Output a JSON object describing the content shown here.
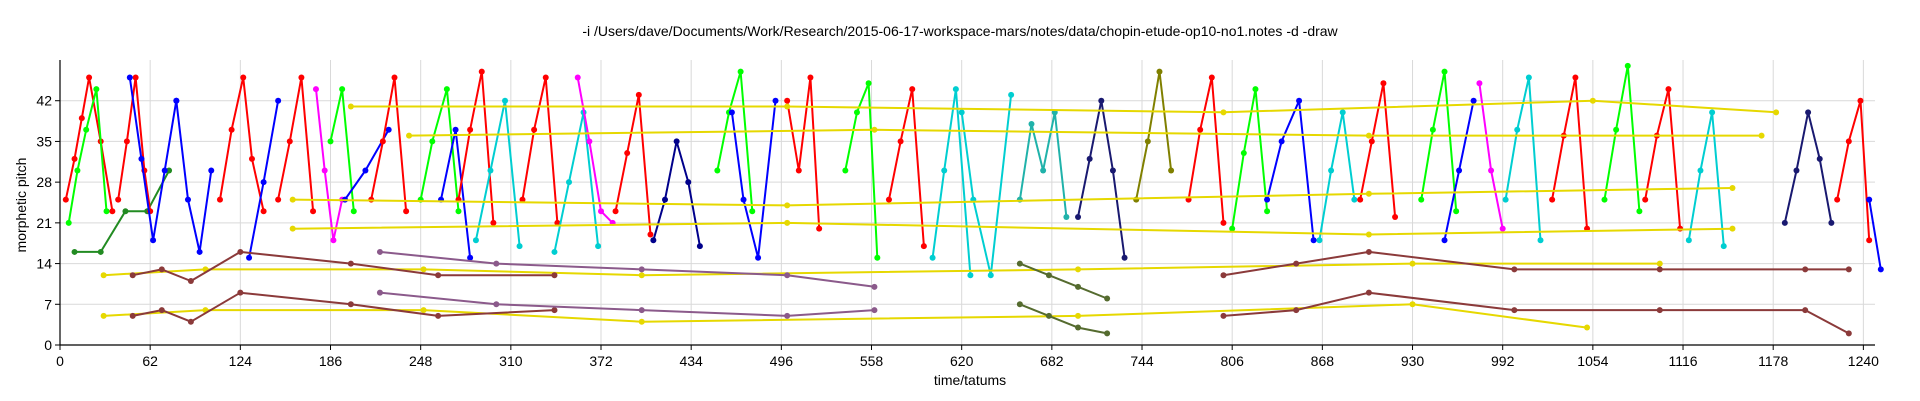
{
  "chart_data": {
    "type": "line",
    "title": "-i /Users/dave/Documents/Work/Research/2015-06-17-workspace-mars/notes/data/chopin-etude-op10-no1.notes -d -draw",
    "xlabel": "time/tatums",
    "ylabel": "morphetic pitch",
    "xlim": [
      0,
      1248
    ],
    "ylim": [
      0,
      49
    ],
    "x_ticks": [
      0,
      62,
      124,
      186,
      248,
      310,
      372,
      434,
      496,
      558,
      620,
      682,
      744,
      806,
      868,
      930,
      992,
      1054,
      1116,
      1178,
      1240
    ],
    "y_ticks": [
      0,
      7,
      14,
      21,
      28,
      35,
      42
    ],
    "grid": true,
    "legend": "none",
    "series": [
      {
        "color": "#ff0000",
        "x": [
          4,
          10,
          15,
          20,
          28,
          36
        ],
        "y": [
          25,
          32,
          39,
          46,
          35,
          23
        ]
      },
      {
        "color": "#00ff00",
        "x": [
          6,
          12,
          18,
          25,
          32
        ],
        "y": [
          21,
          30,
          37,
          44,
          23
        ]
      },
      {
        "color": "#228b22",
        "x": [
          10,
          28,
          45,
          60,
          75
        ],
        "y": [
          16,
          16,
          23,
          23,
          30
        ]
      },
      {
        "color": "#ff0000",
        "x": [
          40,
          46,
          52,
          58,
          62
        ],
        "y": [
          25,
          35,
          46,
          30,
          23
        ]
      },
      {
        "color": "#0000ff",
        "x": [
          48,
          56,
          64,
          72,
          80
        ],
        "y": [
          46,
          32,
          18,
          30,
          42
        ]
      },
      {
        "color": "#0000ff",
        "x": [
          80,
          88,
          96,
          104
        ],
        "y": [
          42,
          25,
          16,
          30
        ]
      },
      {
        "color": "#ff0000",
        "x": [
          110,
          118,
          126,
          132,
          140
        ],
        "y": [
          25,
          37,
          46,
          32,
          23
        ]
      },
      {
        "color": "#0000ff",
        "x": [
          130,
          140,
          150
        ],
        "y": [
          15,
          28,
          42
        ]
      },
      {
        "color": "#ff0000",
        "x": [
          150,
          158,
          166,
          174
        ],
        "y": [
          25,
          35,
          46,
          23
        ]
      },
      {
        "color": "#ff00ff",
        "x": [
          176,
          182,
          188,
          194
        ],
        "y": [
          44,
          30,
          18,
          25
        ]
      },
      {
        "color": "#00ff00",
        "x": [
          186,
          194,
          202
        ],
        "y": [
          35,
          44,
          23
        ]
      },
      {
        "color": "#0000ff",
        "x": [
          196,
          210,
          226
        ],
        "y": [
          25,
          30,
          37
        ]
      },
      {
        "color": "#ff0000",
        "x": [
          214,
          222,
          230,
          238
        ],
        "y": [
          25,
          35,
          46,
          23
        ]
      },
      {
        "color": "#00ff00",
        "x": [
          248,
          256,
          266,
          274
        ],
        "y": [
          25,
          35,
          44,
          23
        ]
      },
      {
        "color": "#0000ff",
        "x": [
          262,
          272,
          282
        ],
        "y": [
          25,
          37,
          15
        ]
      },
      {
        "color": "#ff0000",
        "x": [
          274,
          282,
          290,
          298
        ],
        "y": [
          25,
          37,
          47,
          21
        ]
      },
      {
        "color": "#00ced1",
        "x": [
          286,
          296,
          306,
          316
        ],
        "y": [
          18,
          30,
          42,
          17
        ]
      },
      {
        "color": "#ff0000",
        "x": [
          318,
          326,
          334,
          342
        ],
        "y": [
          25,
          37,
          46,
          21
        ]
      },
      {
        "color": "#00ced1",
        "x": [
          340,
          350,
          360,
          370
        ],
        "y": [
          16,
          28,
          40,
          17
        ]
      },
      {
        "color": "#ff00ff",
        "x": [
          356,
          364,
          372,
          380
        ],
        "y": [
          46,
          35,
          23,
          21
        ]
      },
      {
        "color": "#ff0000",
        "x": [
          382,
          390,
          398,
          406
        ],
        "y": [
          23,
          33,
          43,
          19
        ]
      },
      {
        "color": "#00008b",
        "x": [
          408,
          416,
          424,
          432,
          440
        ],
        "y": [
          18,
          25,
          35,
          28,
          17
        ]
      },
      {
        "color": "#00ff00",
        "x": [
          452,
          460,
          468,
          476
        ],
        "y": [
          30,
          40,
          47,
          23
        ]
      },
      {
        "color": "#0000ff",
        "x": [
          462,
          470,
          480,
          492
        ],
        "y": [
          40,
          25,
          15,
          42
        ]
      },
      {
        "color": "#ff0000",
        "x": [
          500,
          508,
          516,
          522
        ],
        "y": [
          42,
          30,
          46,
          20
        ]
      },
      {
        "color": "#00ff00",
        "x": [
          540,
          548,
          556,
          562
        ],
        "y": [
          30,
          40,
          45,
          15
        ]
      },
      {
        "color": "#ff0000",
        "x": [
          570,
          578,
          586,
          594
        ],
        "y": [
          25,
          35,
          44,
          17
        ]
      },
      {
        "color": "#00ced1",
        "x": [
          600,
          608,
          616,
          626
        ],
        "y": [
          15,
          30,
          44,
          12
        ]
      },
      {
        "color": "#00ced1",
        "x": [
          620,
          628,
          640,
          654
        ],
        "y": [
          40,
          25,
          12,
          43
        ]
      },
      {
        "color": "#20b2aa",
        "x": [
          660,
          668,
          676,
          684,
          692
        ],
        "y": [
          25,
          38,
          30,
          40,
          22
        ]
      },
      {
        "color": "#191970",
        "x": [
          700,
          708,
          716,
          724,
          732
        ],
        "y": [
          22,
          32,
          42,
          30,
          15
        ]
      },
      {
        "color": "#808000",
        "x": [
          740,
          748,
          756,
          764
        ],
        "y": [
          25,
          35,
          47,
          30
        ]
      },
      {
        "color": "#ff0000",
        "x": [
          776,
          784,
          792,
          800
        ],
        "y": [
          25,
          37,
          46,
          21
        ]
      },
      {
        "color": "#00ff00",
        "x": [
          806,
          814,
          822,
          830
        ],
        "y": [
          20,
          33,
          44,
          23
        ]
      },
      {
        "color": "#0000ff",
        "x": [
          830,
          840,
          852,
          862
        ],
        "y": [
          25,
          35,
          42,
          18
        ]
      },
      {
        "color": "#00ced1",
        "x": [
          866,
          874,
          882,
          890
        ],
        "y": [
          18,
          30,
          40,
          25
        ]
      },
      {
        "color": "#ff0000",
        "x": [
          894,
          902,
          910,
          918
        ],
        "y": [
          25,
          35,
          45,
          22
        ]
      },
      {
        "color": "#00ff00",
        "x": [
          936,
          944,
          952,
          960
        ],
        "y": [
          25,
          37,
          47,
          23
        ]
      },
      {
        "color": "#0000ff",
        "x": [
          952,
          962,
          972
        ],
        "y": [
          18,
          30,
          42
        ]
      },
      {
        "color": "#ff00ff",
        "x": [
          976,
          984,
          992
        ],
        "y": [
          45,
          30,
          20
        ]
      },
      {
        "color": "#00ced1",
        "x": [
          994,
          1002,
          1010,
          1018
        ],
        "y": [
          25,
          37,
          46,
          18
        ]
      },
      {
        "color": "#ff0000",
        "x": [
          1026,
          1034,
          1042,
          1050
        ],
        "y": [
          25,
          36,
          46,
          20
        ]
      },
      {
        "color": "#00ff00",
        "x": [
          1062,
          1070,
          1078,
          1086
        ],
        "y": [
          25,
          37,
          48,
          23
        ]
      },
      {
        "color": "#ff0000",
        "x": [
          1090,
          1098,
          1106,
          1114
        ],
        "y": [
          25,
          36,
          44,
          20
        ]
      },
      {
        "color": "#00ced1",
        "x": [
          1120,
          1128,
          1136,
          1144
        ],
        "y": [
          18,
          30,
          40,
          17
        ]
      },
      {
        "color": "#191970",
        "x": [
          1186,
          1194,
          1202,
          1210,
          1218
        ],
        "y": [
          21,
          30,
          40,
          32,
          21
        ]
      },
      {
        "color": "#ff0000",
        "x": [
          1222,
          1230,
          1238,
          1244
        ],
        "y": [
          25,
          35,
          42,
          18
        ]
      },
      {
        "color": "#0000ff",
        "x": [
          1244,
          1252
        ],
        "y": [
          25,
          13
        ]
      },
      {
        "color": "#e6d800",
        "x": [
          200,
          500,
          800,
          1054,
          1180
        ],
        "y": [
          41,
          41,
          40,
          42,
          40
        ]
      },
      {
        "color": "#e6d800",
        "x": [
          240,
          560,
          900,
          1170
        ],
        "y": [
          36,
          37,
          36,
          36
        ]
      },
      {
        "color": "#e6d800",
        "x": [
          160,
          500,
          900,
          1150
        ],
        "y": [
          25,
          24,
          26,
          27
        ]
      },
      {
        "color": "#e6d800",
        "x": [
          160,
          500,
          900,
          1150
        ],
        "y": [
          20,
          21,
          19,
          20
        ]
      },
      {
        "color": "#e6d800",
        "x": [
          30,
          100,
          250,
          400,
          700,
          930,
          1100
        ],
        "y": [
          12,
          13,
          13,
          12,
          13,
          14,
          14
        ]
      },
      {
        "color": "#e6d800",
        "x": [
          30,
          100,
          250,
          400,
          700,
          930,
          1050
        ],
        "y": [
          5,
          6,
          6,
          4,
          5,
          7,
          3
        ]
      },
      {
        "color": "#8b3a3a",
        "x": [
          50,
          70,
          90,
          124,
          200,
          260,
          340
        ],
        "y": [
          12,
          13,
          11,
          16,
          14,
          12,
          12
        ]
      },
      {
        "color": "#8b3a3a",
        "x": [
          50,
          70,
          90,
          124,
          200,
          260,
          340
        ],
        "y": [
          5,
          6,
          4,
          9,
          7,
          5,
          6
        ]
      },
      {
        "color": "#8b3a3a",
        "x": [
          800,
          850,
          900,
          1000,
          1100,
          1200,
          1230
        ],
        "y": [
          12,
          14,
          16,
          13,
          13,
          13,
          13
        ]
      },
      {
        "color": "#8b3a3a",
        "x": [
          800,
          850,
          900,
          1000,
          1100,
          1200,
          1230
        ],
        "y": [
          5,
          6,
          9,
          6,
          6,
          6,
          2
        ]
      },
      {
        "color": "#8b5a8b",
        "x": [
          220,
          300,
          400,
          500,
          560
        ],
        "y": [
          16,
          14,
          13,
          12,
          10
        ]
      },
      {
        "color": "#8b5a8b",
        "x": [
          220,
          300,
          400,
          500,
          560
        ],
        "y": [
          9,
          7,
          6,
          5,
          6
        ]
      },
      {
        "color": "#556b2f",
        "x": [
          660,
          680,
          700,
          720
        ],
        "y": [
          14,
          12,
          10,
          8
        ]
      },
      {
        "color": "#556b2f",
        "x": [
          660,
          680,
          700,
          720
        ],
        "y": [
          7,
          5,
          3,
          2
        ]
      }
    ]
  }
}
